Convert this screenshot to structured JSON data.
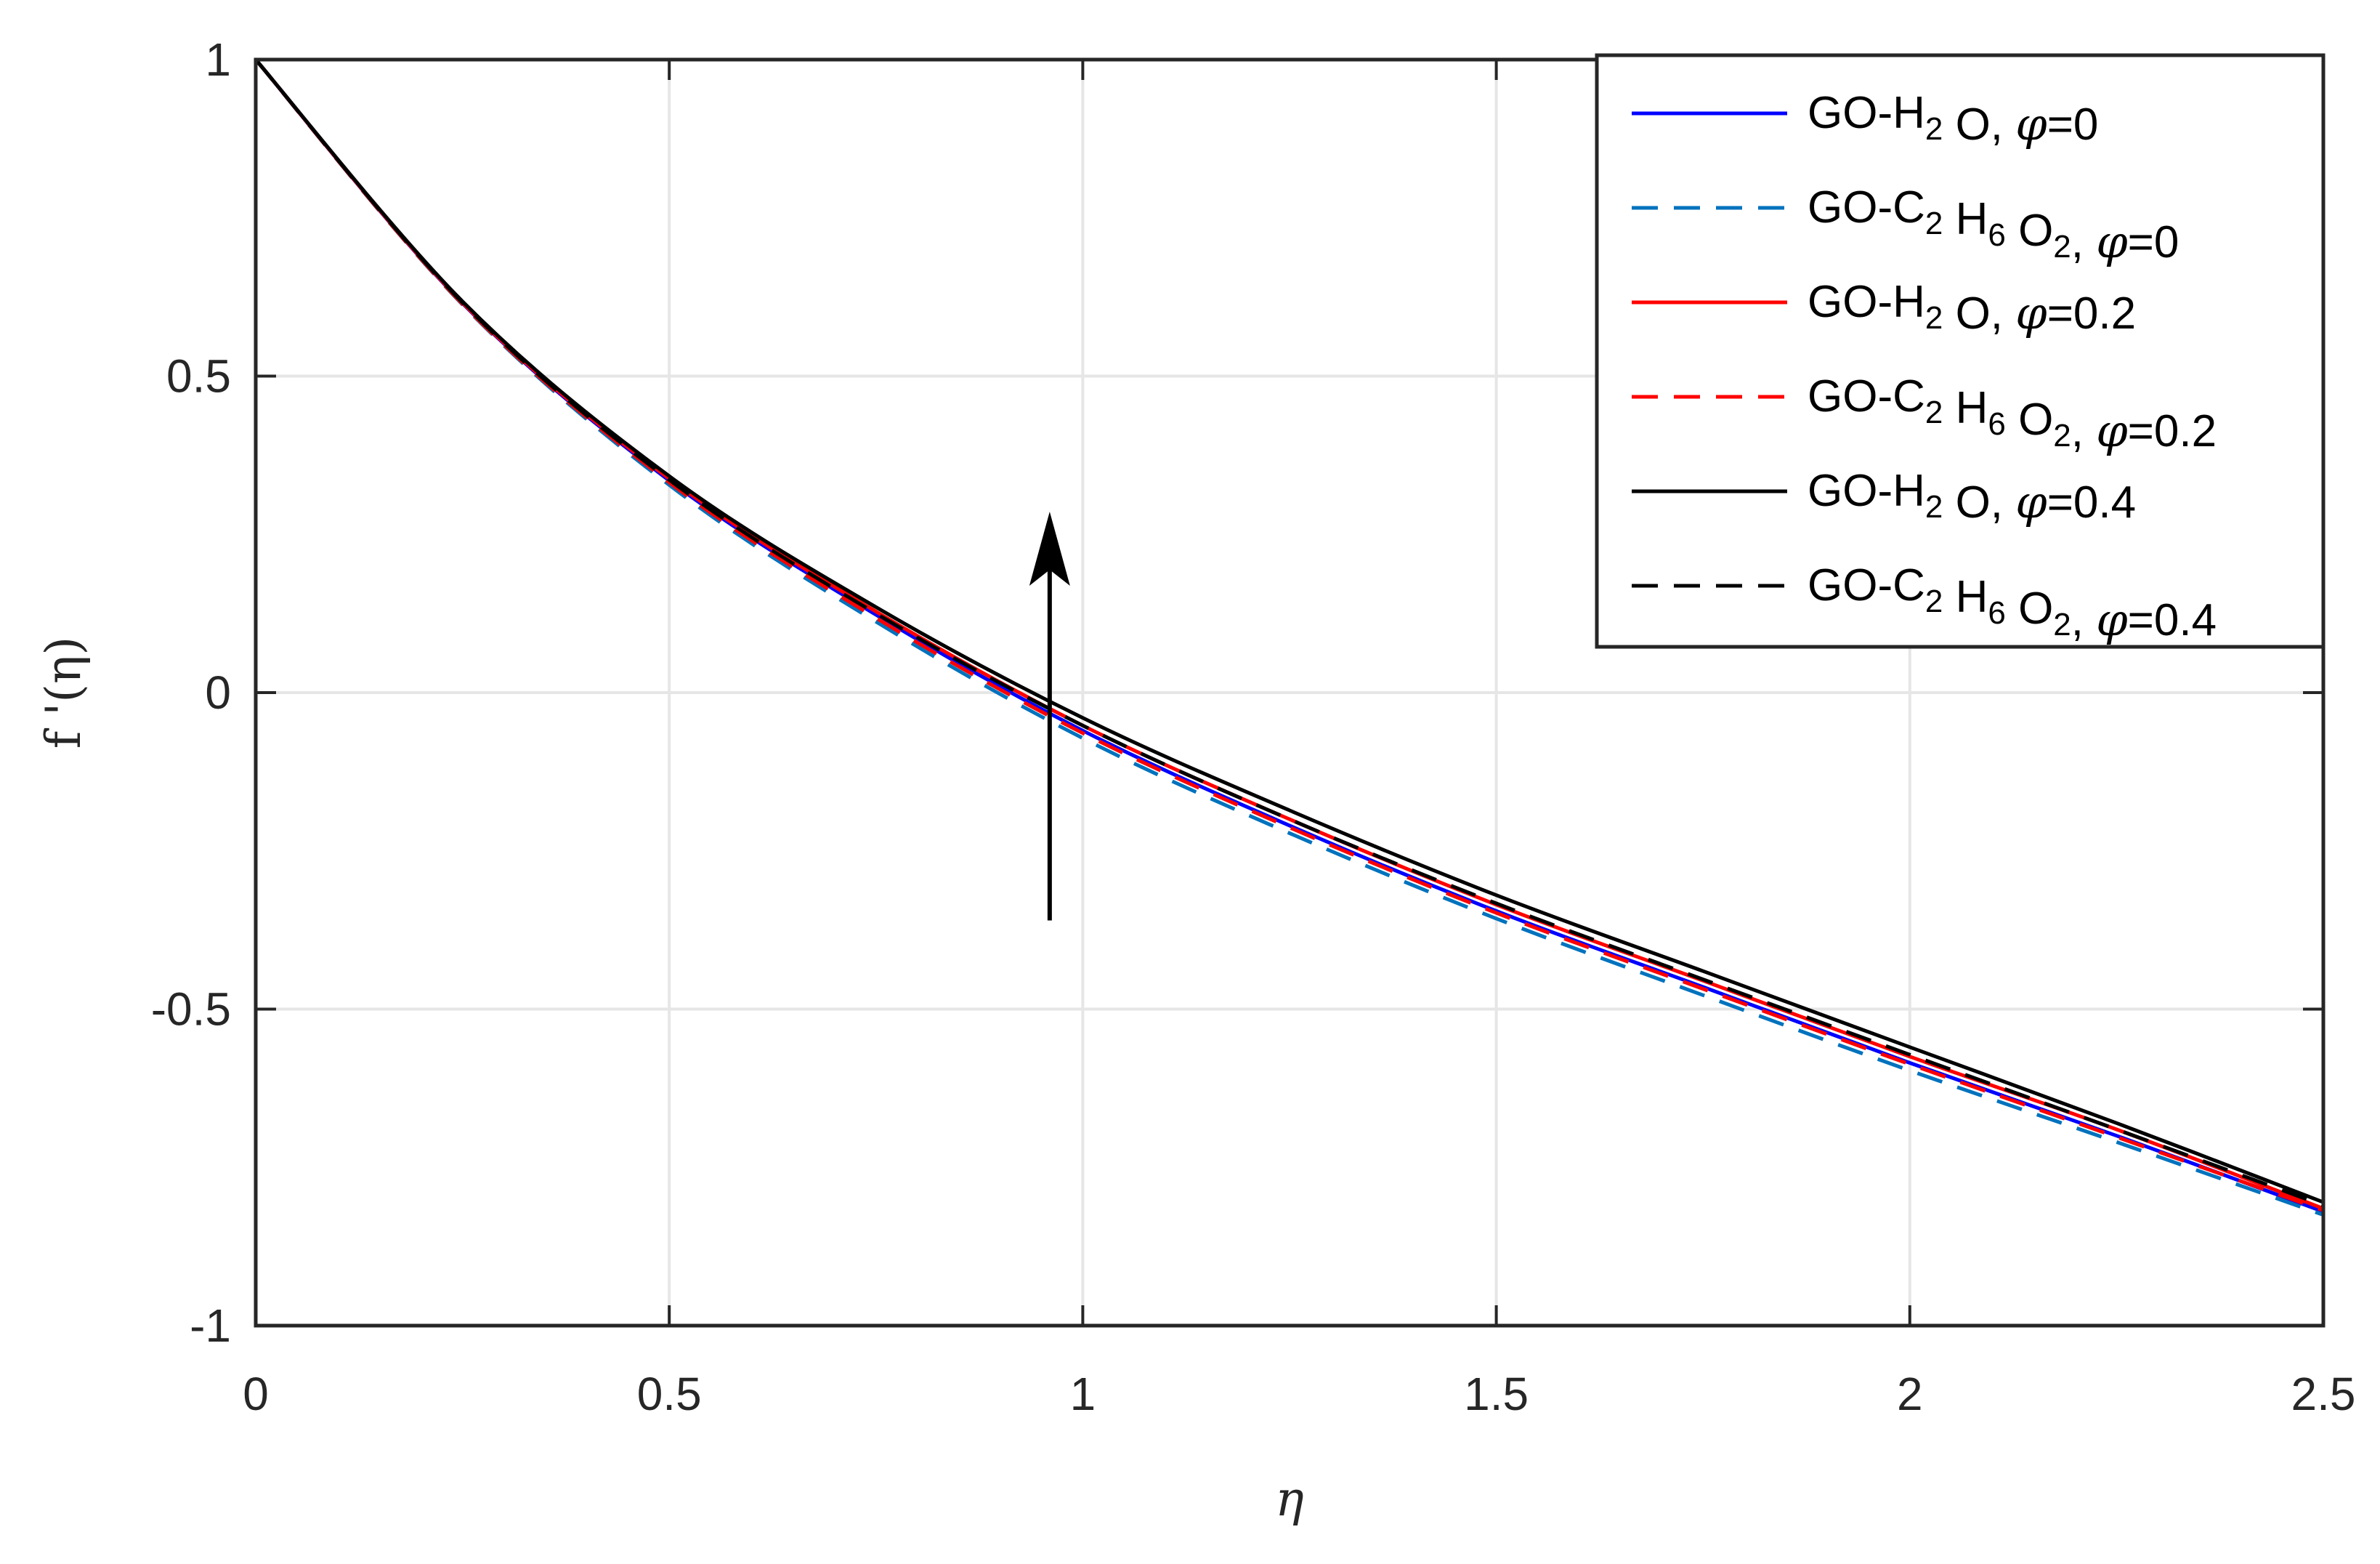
{
  "chart_data": {
    "type": "line",
    "title": "",
    "xlabel": "η",
    "ylabel": "f '(η)",
    "xlim": [
      0,
      2.5
    ],
    "ylim": [
      -1,
      1
    ],
    "xticks": [
      0,
      0.5,
      1,
      1.5,
      2,
      2.5
    ],
    "xtick_labels": [
      "0",
      "0.5",
      "1",
      "1.5",
      "2",
      "2.5"
    ],
    "yticks": [
      -1,
      -0.5,
      0,
      0.5,
      1
    ],
    "ytick_labels": [
      "-1",
      "-0.5",
      "0",
      "0.5",
      "1"
    ],
    "grid": true,
    "legend_position": "top-right",
    "annotation": {
      "type": "arrow",
      "from": [
        0.96,
        -0.36
      ],
      "to": [
        0.96,
        0.24
      ]
    },
    "x": [
      0,
      0.25,
      0.5,
      0.75,
      1.0,
      1.25,
      1.5,
      1.75,
      2.0,
      2.25,
      2.5
    ],
    "series": [
      {
        "name": "GO-H2O, φ=0",
        "color": "#0000ff",
        "dash": "solid",
        "values": [
          1.0,
          0.615,
          0.335,
          0.123,
          -0.06,
          -0.21,
          -0.345,
          -0.465,
          -0.585,
          -0.7,
          -0.82
        ]
      },
      {
        "name": "GO-C2H6O2, φ=0",
        "color": "#0072bd",
        "dash": "dashed",
        "values": [
          1.0,
          0.613,
          0.328,
          0.112,
          -0.072,
          -0.222,
          -0.357,
          -0.478,
          -0.597,
          -0.71,
          -0.825
        ]
      },
      {
        "name": "GO-H2O, φ=0.2",
        "color": "#ff0000",
        "dash": "solid",
        "values": [
          1.0,
          0.616,
          0.338,
          0.128,
          -0.052,
          -0.2,
          -0.335,
          -0.455,
          -0.575,
          -0.69,
          -0.815
        ]
      },
      {
        "name": "GO-C2H6O2, φ=0.2",
        "color": "#ff0000",
        "dash": "dashed",
        "values": [
          1.0,
          0.614,
          0.332,
          0.118,
          -0.064,
          -0.213,
          -0.348,
          -0.468,
          -0.587,
          -0.702,
          -0.818
        ]
      },
      {
        "name": "GO-H2O, φ=0.4",
        "color": "#000000",
        "dash": "solid",
        "values": [
          1.0,
          0.618,
          0.342,
          0.135,
          -0.04,
          -0.186,
          -0.32,
          -0.44,
          -0.56,
          -0.68,
          -0.805
        ]
      },
      {
        "name": "GO-C2H6O2, φ=0.4",
        "color": "#000000",
        "dash": "dashed",
        "values": [
          1.0,
          0.616,
          0.336,
          0.125,
          -0.052,
          -0.2,
          -0.333,
          -0.453,
          -0.572,
          -0.69,
          -0.81
        ]
      }
    ],
    "legend": [
      {
        "pre": "GO-H",
        "sub1": "2",
        "mid": " O, ",
        "phi": "φ",
        "post": "=0"
      },
      {
        "pre": "GO-C",
        "sub1": "2",
        "mid": " H",
        "sub2": "6",
        "mid2": " O",
        "sub3": "2",
        "tail": ", ",
        "phi": "φ",
        "post": "=0"
      },
      {
        "pre": "GO-H",
        "sub1": "2",
        "mid": " O, ",
        "phi": "φ",
        "post": "=0.2"
      },
      {
        "pre": "GO-C",
        "sub1": "2",
        "mid": " H",
        "sub2": "6",
        "mid2": " O",
        "sub3": "2",
        "tail": ", ",
        "phi": "φ",
        "post": "=0.2"
      },
      {
        "pre": "GO-H",
        "sub1": "2",
        "mid": " O, ",
        "phi": "φ",
        "post": "=0.4"
      },
      {
        "pre": "GO-C",
        "sub1": "2",
        "mid": " H",
        "sub2": "6",
        "mid2": " O",
        "sub3": "2",
        "tail": ", ",
        "phi": "φ",
        "post": "=0.4"
      }
    ]
  }
}
